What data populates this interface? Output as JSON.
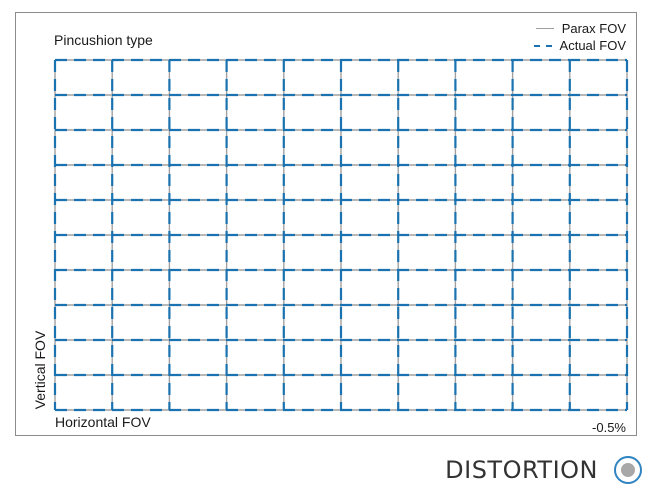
{
  "panel": {
    "title": "Pincushion type",
    "xlabel": "Horizontal FOV",
    "ylabel": "Vertical FOV",
    "distortion_value": "-0.5%"
  },
  "legend": {
    "paraxial": "Parax FOV",
    "actual": "Actual FOV"
  },
  "caption": "DISTORTION",
  "colors": {
    "paraxial_grid": "#a0a0a0",
    "actual_grid": "#1a72b0",
    "frame": "#8c8c8c",
    "icon_ring": "#2f84c1",
    "icon_dot": "#a8a8a8"
  },
  "chart_data": {
    "type": "distortion-grid",
    "grid_columns": 10,
    "grid_rows": 10,
    "distortion_percent": -0.5,
    "series": [
      {
        "name": "Parax FOV",
        "style": "solid"
      },
      {
        "name": "Actual FOV",
        "style": "dashed"
      }
    ]
  }
}
